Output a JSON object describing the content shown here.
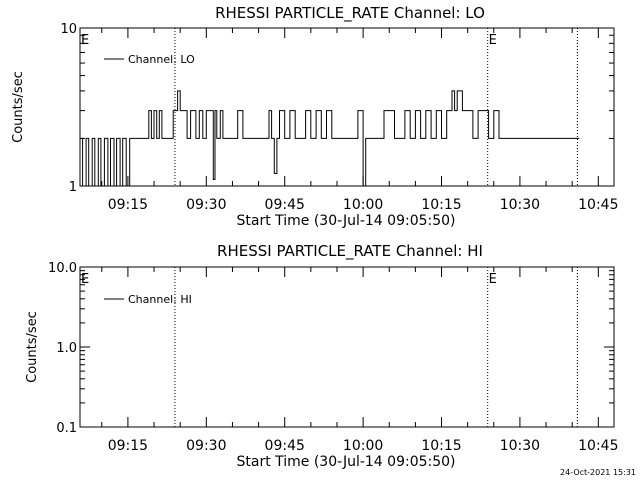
{
  "footer": {
    "timestamp": "24-Oct-2021 15:31"
  },
  "x_axis": {
    "ticks": [
      {
        "label": "09:15",
        "minutes": 15
      },
      {
        "label": "09:30",
        "minutes": 30
      },
      {
        "label": "09:45",
        "minutes": 45
      },
      {
        "label": "10:00",
        "minutes": 60
      },
      {
        "label": "10:15",
        "minutes": 75
      },
      {
        "label": "10:30",
        "minutes": 90
      },
      {
        "label": "10:45",
        "minutes": 105
      }
    ]
  },
  "chart_data": [
    {
      "type": "line",
      "title": "RHESSI PARTICLE_RATE Channel: LO",
      "xlabel": "Start Time (30-Jul-14 09:05:50)",
      "ylabel": "Counts/sec",
      "ylim": [
        1,
        10
      ],
      "yscale": "log",
      "ytick_labels": [
        "1",
        "10"
      ],
      "xlim": [
        "09:05:50",
        "10:48:00"
      ],
      "grid": false,
      "legend": {
        "placement": "top-left",
        "entry": "Channel: LO"
      },
      "markers": [
        {
          "time": "09:05:50",
          "label": "E",
          "show_line": false
        },
        {
          "time": "09:24:00",
          "label": "",
          "show_line": true
        },
        {
          "time": "10:23:50",
          "label": "E",
          "show_line": true
        },
        {
          "time": "10:41:00",
          "label": "",
          "show_line": true
        }
      ],
      "series": [
        {
          "name": "Channel: LO",
          "x": [
            "09:05:50",
            "09:06:20",
            "09:07:00",
            "09:07:30",
            "09:08:10",
            "09:08:40",
            "09:09:20",
            "09:09:50",
            "09:10:30",
            "09:11:10",
            "09:11:40",
            "09:12:20",
            "09:12:50",
            "09:13:30",
            "09:14:00",
            "09:14:40",
            "09:15:20",
            "09:17:00",
            "09:19:00",
            "09:19:30",
            "09:20:00",
            "09:20:30",
            "09:21:00",
            "09:21:30",
            "09:22:00",
            "09:23:00",
            "09:23:40",
            "09:24:00",
            "09:24:30",
            "09:25:00",
            "09:25:20",
            "09:25:40",
            "09:26:20",
            "09:27:00",
            "09:28:00",
            "09:28:40",
            "09:29:20",
            "09:30:00",
            "09:31:20",
            "09:31:40",
            "09:32:00",
            "09:32:40",
            "09:33:10",
            "09:34:00",
            "09:35:00",
            "09:36:00",
            "09:37:00",
            "09:38:30",
            "09:41:00",
            "09:42:00",
            "09:42:30",
            "09:43:00",
            "09:43:30",
            "09:44:00",
            "09:45:00",
            "09:46:00",
            "09:47:00",
            "09:48:00",
            "09:49:00",
            "09:50:00",
            "09:51:00",
            "09:52:00",
            "09:53:00",
            "09:54:00",
            "09:55:00",
            "09:56:00",
            "09:58:00",
            "09:59:00",
            "10:00:00",
            "10:00:30",
            "10:01:00",
            "10:02:00",
            "10:04:00",
            "10:06:00",
            "10:08:00",
            "10:09:00",
            "10:10:00",
            "10:11:00",
            "10:12:00",
            "10:13:00",
            "10:14:00",
            "10:15:00",
            "10:16:00",
            "10:16:30",
            "10:17:00",
            "10:17:30",
            "10:18:00",
            "10:19:00",
            "10:20:00",
            "10:21:00",
            "10:22:00",
            "10:24:00",
            "10:25:00",
            "10:26:00",
            "10:27:00",
            "10:41:00"
          ],
          "y": [
            2,
            1,
            2,
            1,
            2,
            1,
            2,
            1,
            2,
            1,
            2,
            1,
            2,
            1,
            2,
            1,
            2,
            2,
            3,
            2,
            3,
            2,
            3,
            2,
            2,
            2,
            3,
            3,
            4,
            3,
            3,
            3,
            2,
            3,
            2,
            3,
            2,
            3,
            1.1,
            3,
            2,
            3,
            2,
            2,
            2,
            3,
            2,
            2,
            2,
            3,
            2,
            1.2,
            2,
            3,
            2,
            3,
            2,
            2,
            3,
            2,
            3,
            2,
            3,
            2,
            2,
            2,
            2,
            3,
            1,
            2,
            2,
            2,
            3,
            2,
            3,
            2,
            3,
            2,
            3,
            2,
            3,
            2,
            3,
            3,
            4,
            3,
            4,
            3,
            3,
            2,
            3,
            2,
            3,
            2,
            2,
            2
          ]
        }
      ]
    },
    {
      "type": "line",
      "title": "RHESSI PARTICLE_RATE Channel: HI",
      "xlabel": "Start Time (30-Jul-14 09:05:50)",
      "ylabel": "Counts/sec",
      "ylim": [
        0.1,
        10
      ],
      "yscale": "log",
      "ytick_labels": [
        "0.1",
        "1.0",
        "10.0"
      ],
      "xlim": [
        "09:05:50",
        "10:48:00"
      ],
      "grid": false,
      "legend": {
        "placement": "top-left",
        "entry": "Channel: HI"
      },
      "markers": [
        {
          "time": "09:05:50",
          "label": "E",
          "show_line": false
        },
        {
          "time": "09:24:00",
          "label": "",
          "show_line": true
        },
        {
          "time": "10:23:50",
          "label": "E",
          "show_line": true
        },
        {
          "time": "10:41:00",
          "label": "",
          "show_line": true
        }
      ],
      "series": [
        {
          "name": "Channel: HI",
          "x": [],
          "y": []
        }
      ]
    }
  ]
}
